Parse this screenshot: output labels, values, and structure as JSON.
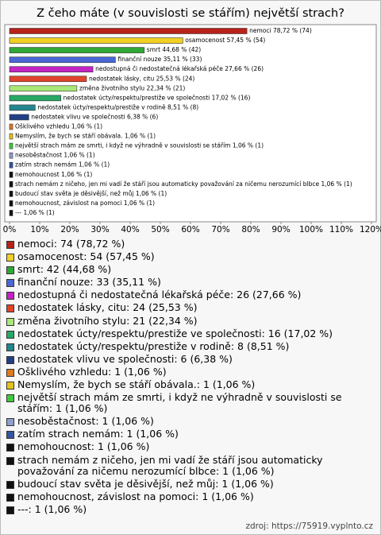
{
  "chart_data": {
    "type": "barh",
    "title": "Z čeho máte (v souvislosti se stářím) největší strach?",
    "values": [
      78.72,
      57.45,
      44.68,
      35.11,
      27.66,
      25.53,
      22.34,
      17.02,
      8.51,
      6.38,
      1.06,
      1.06,
      1.06,
      1.06,
      1.06,
      1.06,
      1.06,
      1.06,
      1.06,
      1.06
    ],
    "value_labels": [
      "nemoci 78,72 % (74)",
      "osamocenost 57,45 % (54)",
      "smrt 44,68 % (42)",
      "finanční nouze 35,11 % (33)",
      "nedostupná či nedostatečná lékařská péče 27,66 % (26)",
      "nedostatek lásky, citu 25,53 % (24)",
      "změna životního stylu 22,34 % (21)",
      "nedostatek úcty/respektu/prestiže ve společnosti 17,02 % (16)",
      "nedostatek úcty/respektu/prestiže v rodině 8,51 % (8)",
      "nedostatek vlivu ve společnosti 6,38 % (6)",
      "Ošklivého vzhledu 1,06 % (1)",
      "Nemyslím, že bych se stáří obávala. 1,06 % (1)",
      "největší strach mám ze smrti, i když ne výhradně v souvislosti se stářím 1,06 % (1)",
      "nesoběstačnost 1,06 % (1)",
      "zatím strach nemám 1,06 % (1)",
      "nemohoucnost 1,06 % (1)",
      "strach nemám z ničeho, jen mi vadí že stáří jsou automaticky považování za ničemu nerozumící blbce 1,06 % (1)",
      "budoucí stav světa je děsivější, než můj 1,06 % (1)",
      "nemohoucnost, závislost na pomoci 1,06 % (1)",
      "--- 1,06 % (1)"
    ],
    "legend_labels": [
      "nemoci: 74 (78,72 %)",
      "osamocenost: 54 (57,45 %)",
      "smrt: 42 (44,68 %)",
      "finanční nouze: 33 (35,11 %)",
      "nedostupná či nedostatečná lékařská péče: 26 (27,66 %)",
      "nedostatek lásky, citu: 24 (25,53 %)",
      "změna životního stylu: 21 (22,34 %)",
      "nedostatek úcty/respektu/prestiže ve společnosti: 16 (17,02 %)",
      "nedostatek úcty/respektu/prestiže v rodině: 8 (8,51 %)",
      "nedostatek vlivu ve společnosti: 6 (6,38 %)",
      "Ošklivého vzhledu: 1 (1,06 %)",
      "Nemyslím, že bych se stáří obávala.: 1 (1,06 %)",
      "největší strach mám ze smrti, i když ne výhradně v souvislosti se stářím: 1 (1,06 %)",
      "nesoběstačnost: 1 (1,06 %)",
      "zatím strach nemám: 1 (1,06 %)",
      "nemohoucnost: 1 (1,06 %)",
      "strach nemám z ničeho, jen mi vadí že stáří jsou automaticky považování za ničemu nerozumící blbce: 1 (1,06 %)",
      "budoucí stav světa je děsivější, než můj: 1 (1,06 %)",
      "nemohoucnost, závislost na pomoci: 1 (1,06 %)",
      "---: 1 (1,06 %)"
    ],
    "colors": [
      "#b8221a",
      "#f2d024",
      "#2fa836",
      "#4a67d6",
      "#c424c4",
      "#e0442a",
      "#a8e878",
      "#27a865",
      "#23858f",
      "#223f86",
      "#e07a1c",
      "#e6c21a",
      "#3ec93e",
      "#8e9fd0",
      "#3456a0",
      "#111111",
      "#111111",
      "#111111",
      "#111111",
      "#111111"
    ],
    "xlim": [
      0,
      120
    ],
    "xticks": [
      {
        "value": 0,
        "label": "0%"
      },
      {
        "value": 10,
        "label": "10%"
      },
      {
        "value": 20,
        "label": "20%"
      },
      {
        "value": 30,
        "label": "30%"
      },
      {
        "value": 40,
        "label": "40%"
      },
      {
        "value": 50,
        "label": "50%"
      },
      {
        "value": 60,
        "label": "60%"
      },
      {
        "value": 70,
        "label": "70%"
      },
      {
        "value": 80,
        "label": "80%"
      },
      {
        "value": 90,
        "label": "90%"
      },
      {
        "value": 100,
        "label": "100%"
      },
      {
        "value": 110,
        "label": "110%"
      },
      {
        "value": 120,
        "label": "120%"
      }
    ]
  },
  "source": "zdroj: https://75919.vyplnto.cz"
}
